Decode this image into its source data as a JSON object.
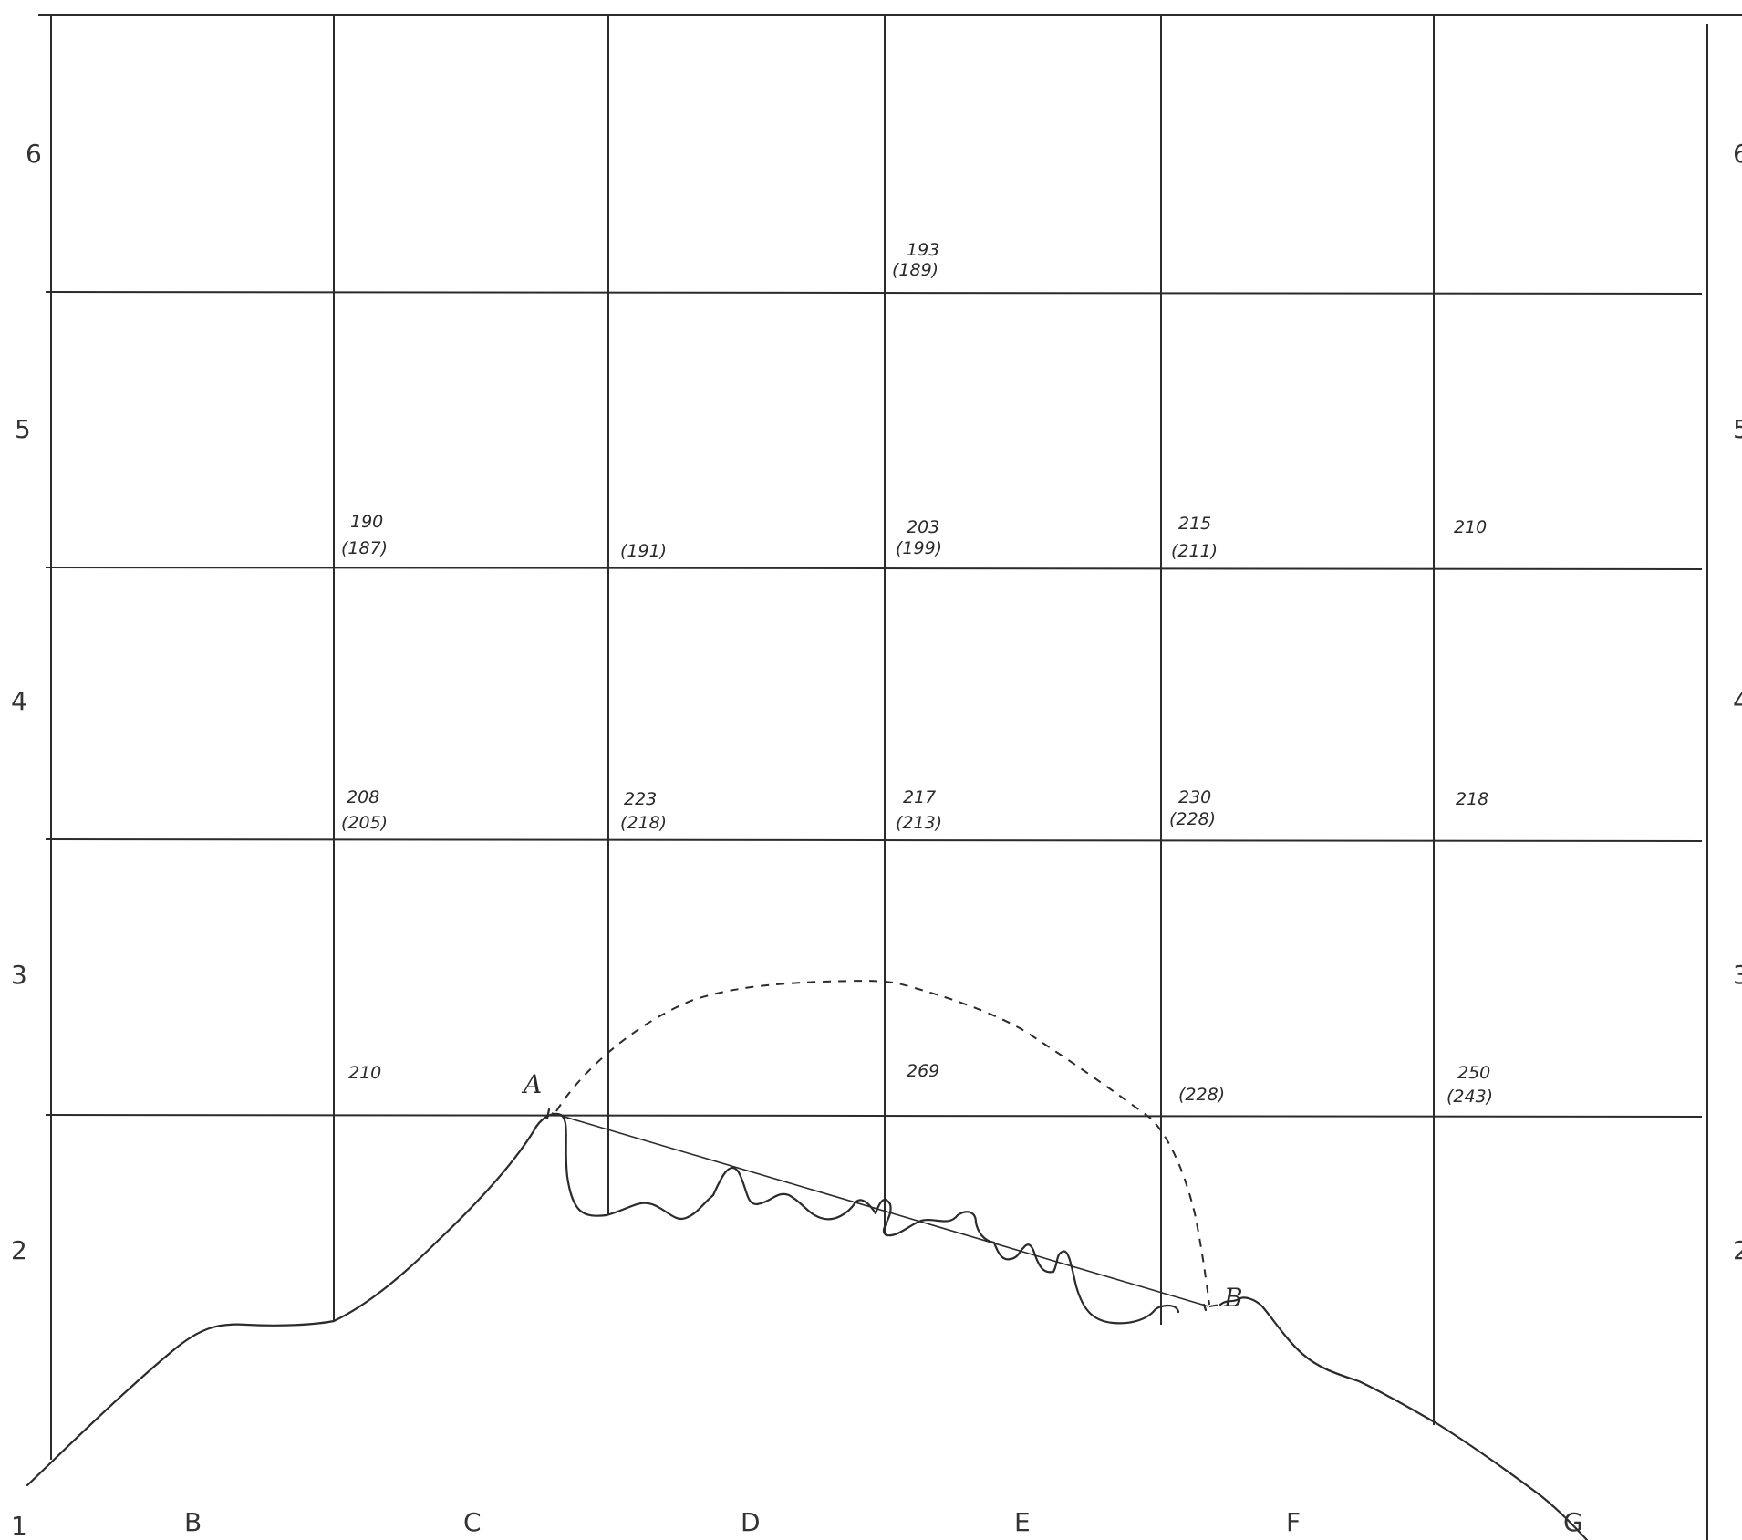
{
  "grid": {
    "row_labels_left": [
      "6",
      "5",
      "4",
      "3",
      "2",
      "1"
    ],
    "row_labels_right_partial": [
      "6",
      "5",
      "4",
      "3",
      "2"
    ],
    "column_labels": [
      "B",
      "C",
      "D",
      "E",
      "F",
      "G"
    ]
  },
  "soundings": [
    {
      "value": "193",
      "bracketed": "(189)"
    },
    {
      "value": "190",
      "bracketed": "(187)"
    },
    {
      "value": "",
      "bracketed": "(191)"
    },
    {
      "value": "203",
      "bracketed": "(199)"
    },
    {
      "value": "215",
      "bracketed": "(211)"
    },
    {
      "value": "210",
      "bracketed": ""
    },
    {
      "value": "208",
      "bracketed": "(205)"
    },
    {
      "value": "223",
      "bracketed": "(218)"
    },
    {
      "value": "217",
      "bracketed": "(213)"
    },
    {
      "value": "230",
      "bracketed": "(228)"
    },
    {
      "value": "218",
      "bracketed": ""
    },
    {
      "value": "210",
      "bracketed": ""
    },
    {
      "value": "269",
      "bracketed": ""
    },
    {
      "value": "",
      "bracketed": "(228)"
    },
    {
      "value": "250",
      "bracketed": "(243)"
    }
  ],
  "points": {
    "a": "A",
    "b": "B"
  }
}
